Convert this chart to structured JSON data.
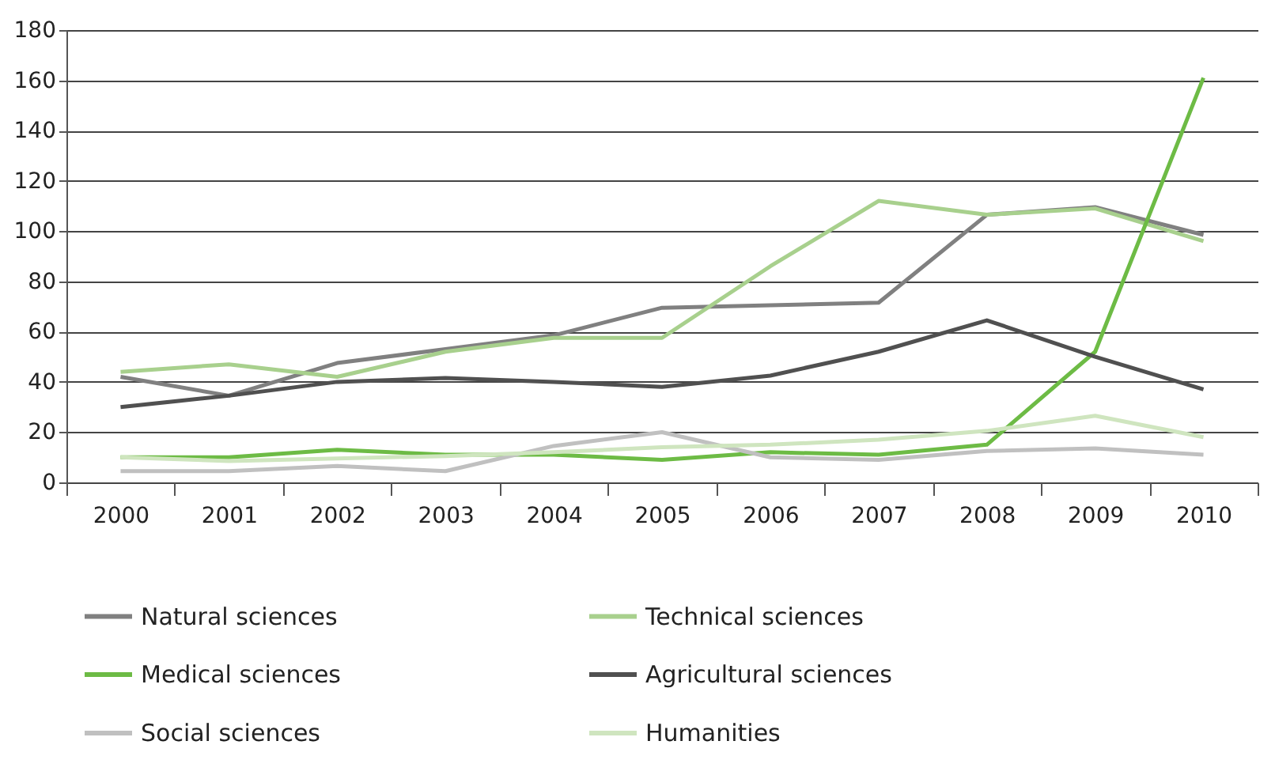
{
  "chart_data": {
    "type": "line",
    "categories": [
      "2000",
      "2001",
      "2002",
      "2003",
      "2004",
      "2005",
      "2006",
      "2007",
      "2008",
      "2009",
      "2010"
    ],
    "ylim": [
      0,
      180
    ],
    "yticks": [
      0,
      20,
      40,
      60,
      80,
      100,
      120,
      140,
      160,
      180
    ],
    "grid": "y",
    "legend": "bottom",
    "marker": "none",
    "line_style": "solid",
    "series": [
      {
        "name": "Natural sciences",
        "color": "#808080",
        "values": [
          42,
          34.5,
          47.5,
          53,
          58.5,
          69.5,
          70.5,
          71.5,
          106.5,
          109.5,
          98.5
        ]
      },
      {
        "name": "Technical sciences",
        "color": "#a8d08d",
        "values": [
          44,
          47,
          42,
          52,
          57.5,
          57.5,
          86,
          112,
          106.5,
          109,
          96
        ]
      },
      {
        "name": "Medical sciences",
        "color": "#6dbb45",
        "values": [
          10,
          10,
          13,
          11,
          11,
          9,
          12,
          11,
          15,
          52,
          161
        ]
      },
      {
        "name": "Agricultural sciences",
        "color": "#505050",
        "values": [
          30,
          34.5,
          40,
          41.5,
          40,
          38,
          42.5,
          52,
          64.5,
          50,
          37
        ]
      },
      {
        "name": "Social sciences",
        "color": "#c0c0c0",
        "values": [
          4.5,
          4.5,
          6.5,
          4.5,
          14.5,
          20,
          10,
          9,
          12.5,
          13.5,
          11
        ]
      },
      {
        "name": "Humanities",
        "color": "#cfe5bf",
        "values": [
          10,
          8.5,
          9.5,
          10.5,
          12,
          14,
          15,
          17,
          20.5,
          26.5,
          18
        ]
      }
    ]
  }
}
